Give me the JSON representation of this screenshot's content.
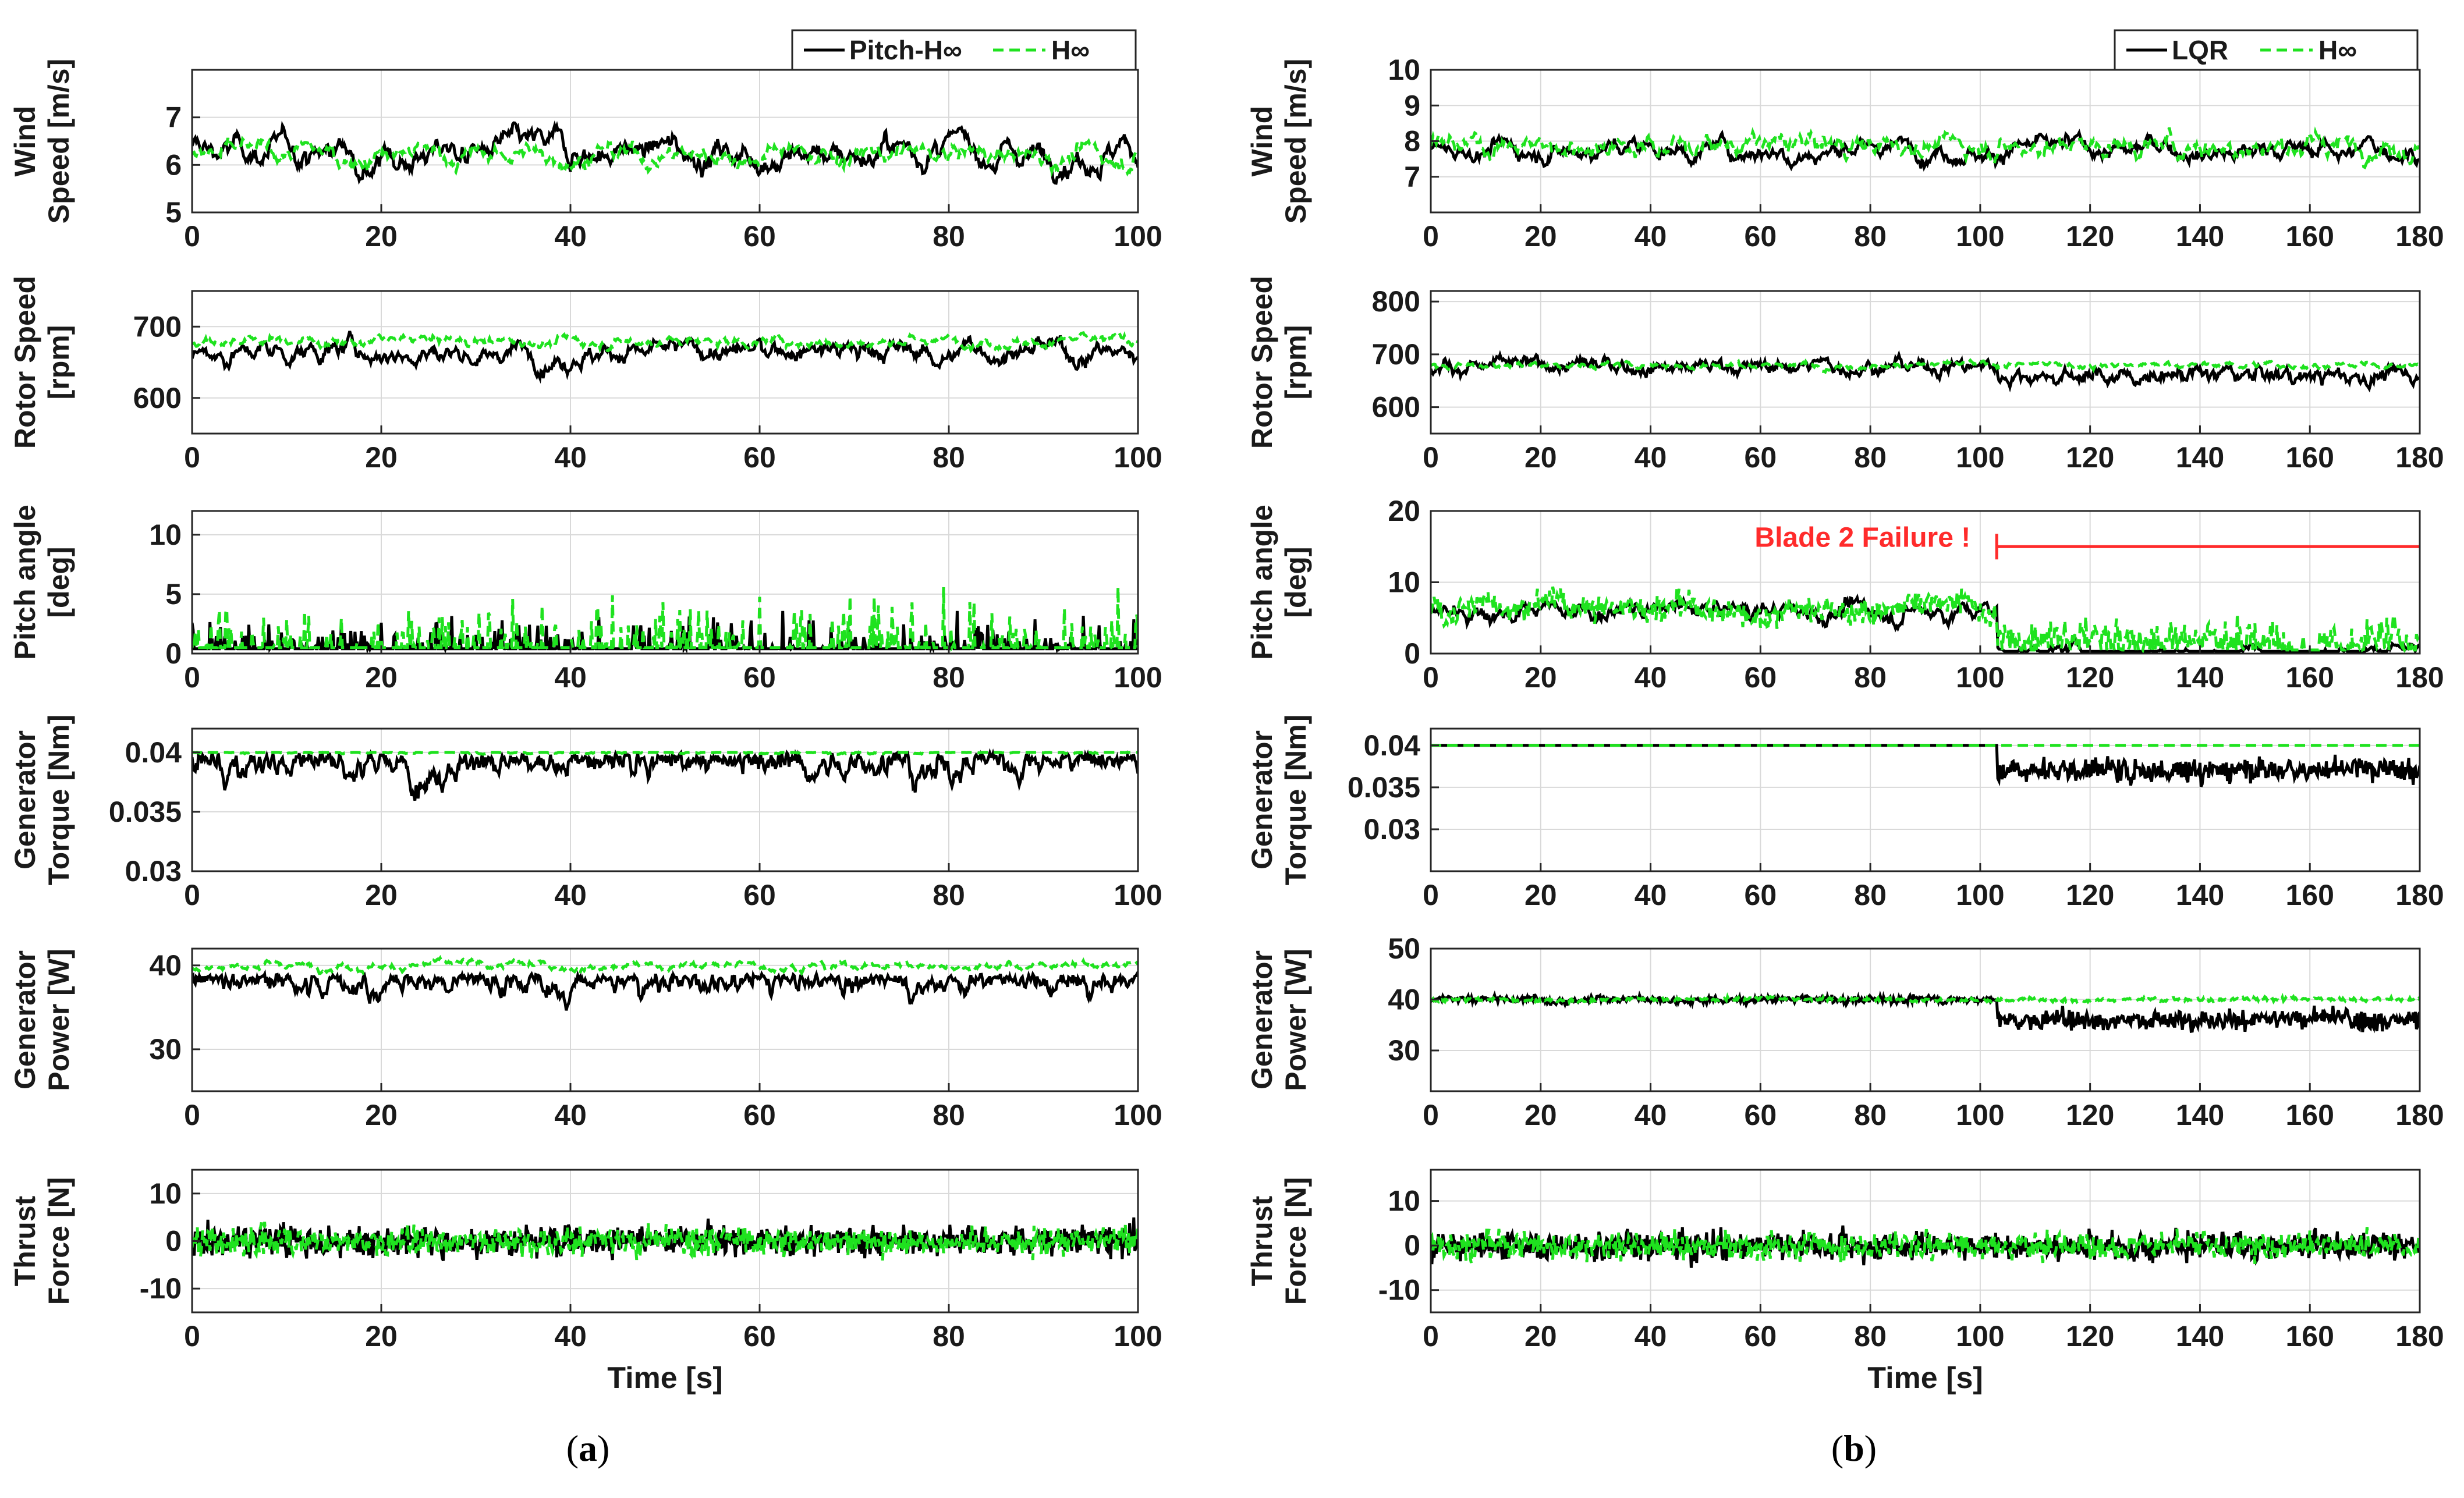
{
  "colors": {
    "black": "#000000",
    "green": "#1fe21f",
    "red": "#ff2b2b",
    "grid": "#d9d9d9"
  },
  "chart_data": [
    {
      "panel": "a",
      "caption_letter": "a",
      "type": "line",
      "xlabel": "Time [s]",
      "xlim": [
        0,
        100
      ],
      "xticks": [
        0,
        20,
        40,
        60,
        80,
        100
      ],
      "legend": [
        {
          "name": "Pitch-H∞",
          "style": "solid",
          "color": "#000000"
        },
        {
          "name": "H∞",
          "style": "dashed",
          "color": "#1fe21f"
        }
      ],
      "subplots": [
        {
          "ylabel": [
            "Wind",
            "Speed [m/s]"
          ],
          "ylim": [
            5,
            8
          ],
          "yticks": [
            5,
            6,
            7
          ],
          "series": [
            {
              "name": "Pitch-H∞",
              "base": 6.3,
              "amp": 0.45,
              "noise": 0.15,
              "smooth": 4
            },
            {
              "name": "H∞",
              "base": 6.2,
              "amp": 0.3,
              "noise": 0.2,
              "smooth": 3
            }
          ]
        },
        {
          "ylabel": [
            "Rotor Speed",
            "[rpm]"
          ],
          "ylim": [
            550,
            750
          ],
          "yticks": [
            600,
            700
          ],
          "series": [
            {
              "name": "Pitch-H∞",
              "base": 665,
              "amp": 22,
              "noise": 12,
              "smooth": 2,
              "cap": 700
            },
            {
              "name": "H∞",
              "base": 680,
              "amp": 8,
              "noise": 10,
              "smooth": 1
            }
          ]
        },
        {
          "ylabel": [
            "Pitch angle",
            "[deg]"
          ],
          "ylim": [
            0,
            12
          ],
          "yticks": [
            0,
            5,
            10
          ],
          "series": [
            {
              "name": "Pitch-H∞",
              "base": 0.4,
              "amp": 0,
              "noise": 2.5,
              "smooth": 1,
              "floor": 0.4,
              "sparse": true
            },
            {
              "name": "H∞",
              "base": 0.5,
              "amp": 0,
              "noise": 4,
              "smooth": 1,
              "floor": 0.5,
              "sparse": true
            }
          ]
        },
        {
          "ylabel": [
            "Generator",
            "Torque [Nm]"
          ],
          "ylim": [
            0.03,
            0.042
          ],
          "yticks": [
            0.03,
            0.035,
            0.04
          ],
          "series": [
            {
              "name": "Pitch-H∞",
              "base": 0.04,
              "amp": 0.0025,
              "noise": 0.001,
              "smooth": 3,
              "cap": 0.04,
              "dips": true
            },
            {
              "name": "H∞",
              "base": 0.04,
              "amp": 0.0,
              "noise": 0.0002,
              "smooth": 1,
              "cap": 0.04
            }
          ]
        },
        {
          "ylabel": [
            "Generator",
            "Power [W]"
          ],
          "ylim": [
            25,
            42
          ],
          "yticks": [
            30,
            40
          ],
          "series": [
            {
              "name": "Pitch-H∞",
              "base": 39,
              "amp": 3,
              "noise": 1.2,
              "smooth": 3,
              "cap": 40.5,
              "dips": true
            },
            {
              "name": "H∞",
              "base": 40,
              "amp": 0.6,
              "noise": 0.6,
              "smooth": 1,
              "cap": 41
            }
          ]
        },
        {
          "ylabel": [
            "Thrust",
            "Force [N]"
          ],
          "ylim": [
            -15,
            15
          ],
          "yticks": [
            -10,
            0,
            10
          ],
          "series": [
            {
              "name": "Pitch-H∞",
              "base": 0,
              "amp": 0,
              "noise": 6,
              "smooth": 0
            },
            {
              "name": "H∞",
              "base": 0,
              "amp": 0,
              "noise": 5.5,
              "smooth": 0
            }
          ]
        }
      ]
    },
    {
      "panel": "b",
      "caption_letter": "b",
      "type": "line",
      "xlabel": "Time [s]",
      "xlim": [
        0,
        180
      ],
      "xticks": [
        0,
        20,
        40,
        60,
        80,
        100,
        120,
        140,
        160,
        180
      ],
      "legend": [
        {
          "name": "LQR",
          "style": "solid",
          "color": "#000000"
        },
        {
          "name": "H∞",
          "style": "dashed",
          "color": "#1fe21f"
        }
      ],
      "annotation": {
        "text": "Blade 2 Failure !",
        "time": 103,
        "level": 15,
        "color": "#ff2b2b"
      },
      "subplots": [
        {
          "ylabel": [
            "Wind",
            "Speed [m/s]"
          ],
          "ylim": [
            6,
            10
          ],
          "yticks": [
            7,
            8,
            9,
            10
          ],
          "series": [
            {
              "name": "LQR",
              "base": 7.8,
              "amp": 0.4,
              "noise": 0.25,
              "smooth": 2
            },
            {
              "name": "H∞",
              "base": 7.9,
              "amp": 0.3,
              "noise": 0.45,
              "smooth": 1
            }
          ]
        },
        {
          "ylabel": [
            "Rotor Speed",
            "[rpm]"
          ],
          "ylim": [
            550,
            820
          ],
          "yticks": [
            600,
            700,
            800
          ],
          "series": [
            {
              "name": "LQR",
              "base": 678,
              "amp": 10,
              "noise": 25,
              "smooth": 1,
              "post": {
                "base": 660,
                "noise": 30
              }
            },
            {
              "name": "H∞",
              "base": 680,
              "amp": 4,
              "noise": 10,
              "smooth": 1
            }
          ]
        },
        {
          "ylabel": [
            "Pitch angle",
            "[deg]"
          ],
          "ylim": [
            0,
            20
          ],
          "yticks": [
            0,
            10,
            20
          ],
          "series": [
            {
              "name": "LQR",
              "base": 6,
              "amp": 1.5,
              "noise": 2,
              "smooth": 1,
              "floor": 0,
              "post": {
                "base": 0.3,
                "noise": 0.8,
                "floor": 0.3
              }
            },
            {
              "name": "H∞",
              "base": 6.5,
              "amp": 1.5,
              "noise": 3,
              "smooth": 0,
              "floor": 0,
              "post": {
                "base": 2,
                "noise": 5,
                "floor": 0.5
              }
            }
          ]
        },
        {
          "ylabel": [
            "Generator",
            "Torque [Nm]"
          ],
          "ylim": [
            0.025,
            0.042
          ],
          "yticks": [
            0.03,
            0.035,
            0.04
          ],
          "series": [
            {
              "name": "LQR",
              "base": 0.04,
              "amp": 0,
              "noise": 0,
              "smooth": 0,
              "cap": 0.04,
              "post": {
                "base": 0.037,
                "noise": 0.0025,
                "cap": 0.04
              }
            },
            {
              "name": "H∞",
              "base": 0.04,
              "amp": 0,
              "noise": 0,
              "smooth": 0,
              "cap": 0.04
            }
          ]
        },
        {
          "ylabel": [
            "Generator",
            "Power [W]"
          ],
          "ylim": [
            22,
            50
          ],
          "yticks": [
            30,
            40,
            50
          ],
          "series": [
            {
              "name": "LQR",
              "base": 40,
              "amp": 0.5,
              "noise": 1.2,
              "smooth": 0,
              "post": {
                "base": 36,
                "noise": 3.5
              }
            },
            {
              "name": "H∞",
              "base": 40,
              "amp": 0.3,
              "noise": 0.6,
              "smooth": 0
            }
          ]
        },
        {
          "ylabel": [
            "Thrust",
            "Force [N]"
          ],
          "ylim": [
            -15,
            17
          ],
          "yticks": [
            -10,
            0,
            10
          ],
          "series": [
            {
              "name": "LQR",
              "base": 0,
              "amp": 0,
              "noise": 6,
              "smooth": 0
            },
            {
              "name": "H∞",
              "base": 0,
              "amp": 0,
              "noise": 5.5,
              "smooth": 0
            }
          ]
        }
      ]
    }
  ]
}
